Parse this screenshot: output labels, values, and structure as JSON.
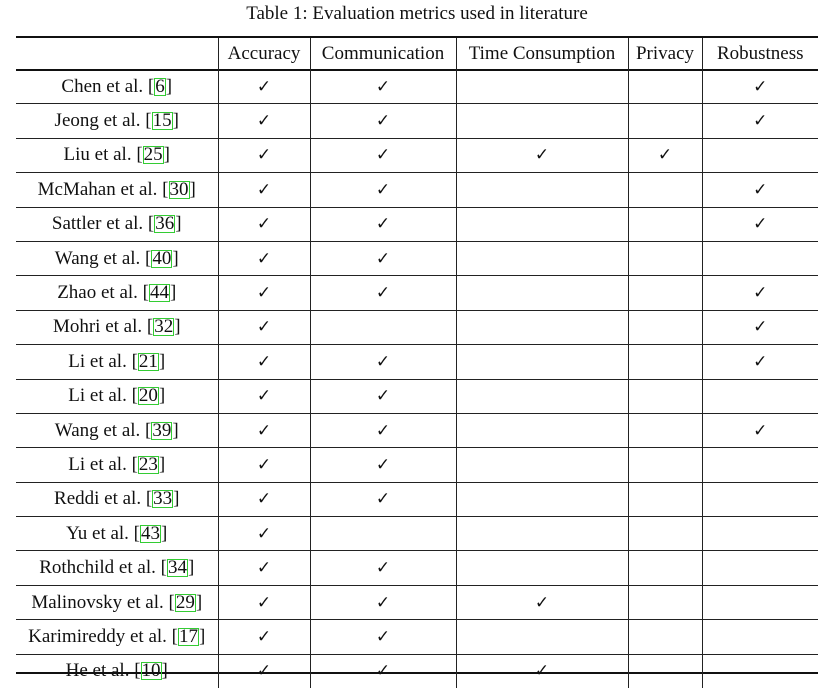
{
  "caption": "Table 1: Evaluation metrics used in literature",
  "columns": [
    "Accuracy",
    "Communication",
    "Time Consumption",
    "Privacy",
    "Robustness"
  ],
  "check_symbol": "✓",
  "cite_box_color": "#33cc33",
  "rows": [
    {
      "author": "Chen et al. [",
      "ref": "6",
      "close": "]",
      "accuracy": "✓",
      "communication": "✓",
      "time": "",
      "privacy": "",
      "robustness": "✓"
    },
    {
      "author": "Jeong et al. [",
      "ref": "15",
      "close": "]",
      "accuracy": "✓",
      "communication": "✓",
      "time": "",
      "privacy": "",
      "robustness": "✓"
    },
    {
      "author": "Liu et al. [",
      "ref": "25",
      "close": "]",
      "accuracy": "✓",
      "communication": "✓",
      "time": "✓",
      "privacy": "✓",
      "robustness": ""
    },
    {
      "author": "McMahan et al. [",
      "ref": "30",
      "close": "]",
      "accuracy": "✓",
      "communication": "✓",
      "time": "",
      "privacy": "",
      "robustness": "✓"
    },
    {
      "author": "Sattler et al. [",
      "ref": "36",
      "close": "]",
      "accuracy": "✓",
      "communication": "✓",
      "time": "",
      "privacy": "",
      "robustness": "✓"
    },
    {
      "author": "Wang et al. [",
      "ref": "40",
      "close": "]",
      "accuracy": "✓",
      "communication": "✓",
      "time": "",
      "privacy": "",
      "robustness": ""
    },
    {
      "author": "Zhao et al. [",
      "ref": "44",
      "close": "]",
      "accuracy": "✓",
      "communication": "✓",
      "time": "",
      "privacy": "",
      "robustness": "✓"
    },
    {
      "author": "Mohri et al. [",
      "ref": "32",
      "close": "]",
      "accuracy": "✓",
      "communication": "",
      "time": "",
      "privacy": "",
      "robustness": "✓"
    },
    {
      "author": "Li et al. [",
      "ref": "21",
      "close": "]",
      "accuracy": "✓",
      "communication": "✓",
      "time": "",
      "privacy": "",
      "robustness": "✓"
    },
    {
      "author": "Li et al. [",
      "ref": "20",
      "close": "]",
      "accuracy": "✓",
      "communication": "✓",
      "time": "",
      "privacy": "",
      "robustness": ""
    },
    {
      "author": "Wang et al. [",
      "ref": "39",
      "close": "]",
      "accuracy": "✓",
      "communication": "✓",
      "time": "",
      "privacy": "",
      "robustness": "✓"
    },
    {
      "author": "Li et al. [",
      "ref": "23",
      "close": "]",
      "accuracy": "✓",
      "communication": "✓",
      "time": "",
      "privacy": "",
      "robustness": ""
    },
    {
      "author": "Reddi et al. [",
      "ref": "33",
      "close": "]",
      "accuracy": "✓",
      "communication": "✓",
      "time": "",
      "privacy": "",
      "robustness": ""
    },
    {
      "author": "Yu et al. [",
      "ref": "43",
      "close": "]",
      "accuracy": "✓",
      "communication": "",
      "time": "",
      "privacy": "",
      "robustness": ""
    },
    {
      "author": "Rothchild et al. [",
      "ref": "34",
      "close": "]",
      "accuracy": "✓",
      "communication": "✓",
      "time": "",
      "privacy": "",
      "robustness": ""
    },
    {
      "author": "Malinovsky et al. [",
      "ref": "29",
      "close": "]",
      "accuracy": "✓",
      "communication": "✓",
      "time": "✓",
      "privacy": "",
      "robustness": ""
    },
    {
      "author": "Karimireddy et al. [",
      "ref": "17",
      "close": "]",
      "accuracy": "✓",
      "communication": "✓",
      "time": "",
      "privacy": "",
      "robustness": ""
    },
    {
      "author": "He et al. [",
      "ref": "10",
      "close": "]",
      "accuracy": "✓",
      "communication": "✓",
      "time": "✓",
      "privacy": "",
      "robustness": ""
    }
  ]
}
